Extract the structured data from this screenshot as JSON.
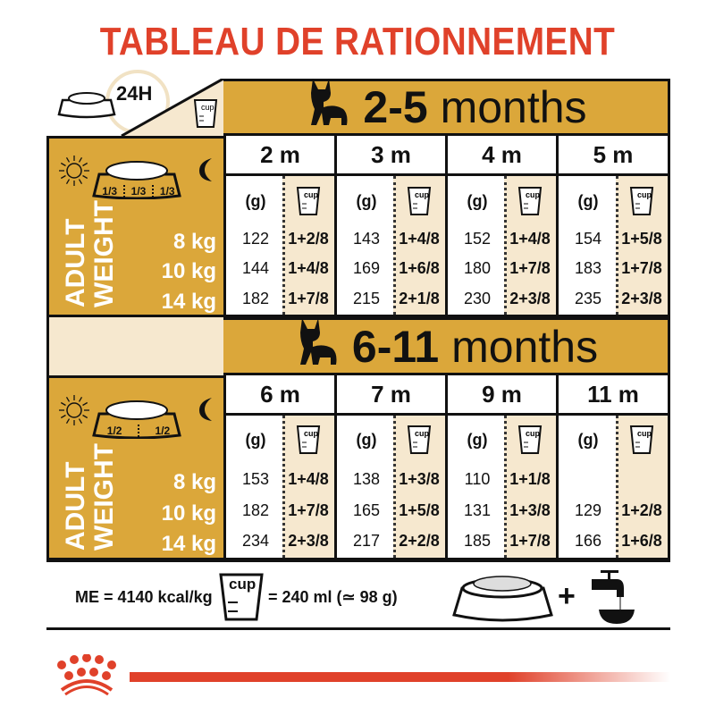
{
  "title": "TABLEAU DE RATIONNEMENT",
  "colors": {
    "red": "#E0412A",
    "gold": "#DBA73A",
    "cream": "#F6E8CF"
  },
  "top_left": {
    "label": "24H",
    "icons": [
      "food-bowl-icon",
      "clock-icon",
      "cup-icon"
    ]
  },
  "sections": [
    {
      "banner": {
        "range": "2-5",
        "unit": "months"
      },
      "portions": [
        "1/3",
        "1/3",
        "1/3"
      ],
      "adult_weight_label": [
        "ADULT",
        "WEIGHT"
      ],
      "weights": [
        "8 kg",
        "10 kg",
        "14 kg"
      ],
      "unit_g": "(g)",
      "cup_label": "cup",
      "columns": [
        {
          "age": "2 m",
          "grams": [
            "122",
            "144",
            "182"
          ],
          "cups": [
            "1+2/8",
            "1+4/8",
            "1+7/8"
          ]
        },
        {
          "age": "3 m",
          "grams": [
            "143",
            "169",
            "215"
          ],
          "cups": [
            "1+4/8",
            "1+6/8",
            "2+1/8"
          ]
        },
        {
          "age": "4 m",
          "grams": [
            "152",
            "180",
            "230"
          ],
          "cups": [
            "1+4/8",
            "1+7/8",
            "2+3/8"
          ]
        },
        {
          "age": "5 m",
          "grams": [
            "154",
            "183",
            "235"
          ],
          "cups": [
            "1+5/8",
            "1+7/8",
            "2+3/8"
          ]
        }
      ]
    },
    {
      "banner": {
        "range": "6-11",
        "unit": "months"
      },
      "portions": [
        "1/2",
        "1/2"
      ],
      "adult_weight_label": [
        "ADULT",
        "WEIGHT"
      ],
      "weights": [
        "8 kg",
        "10 kg",
        "14 kg"
      ],
      "unit_g": "(g)",
      "cup_label": "cup",
      "columns": [
        {
          "age": "6 m",
          "grams": [
            "153",
            "182",
            "234"
          ],
          "cups": [
            "1+4/8",
            "1+7/8",
            "2+3/8"
          ]
        },
        {
          "age": "7 m",
          "grams": [
            "138",
            "165",
            "217"
          ],
          "cups": [
            "1+3/8",
            "1+5/8",
            "2+2/8"
          ]
        },
        {
          "age": "9 m",
          "grams": [
            "110",
            "131",
            "185"
          ],
          "cups": [
            "1+1/8",
            "1+3/8",
            "1+7/8"
          ]
        },
        {
          "age": "11 m",
          "grams": [
            "",
            "129",
            "166"
          ],
          "cups": [
            "",
            "1+2/8",
            "1+6/8"
          ]
        }
      ]
    }
  ],
  "footer": {
    "energy": "ME = 4140 kcal/kg",
    "cup_label": "cup",
    "cup_equivalence": "= 240 ml (≃ 98 g)",
    "plus": "+",
    "icons": [
      "food-bowl-icon",
      "water-tap-icon"
    ]
  }
}
